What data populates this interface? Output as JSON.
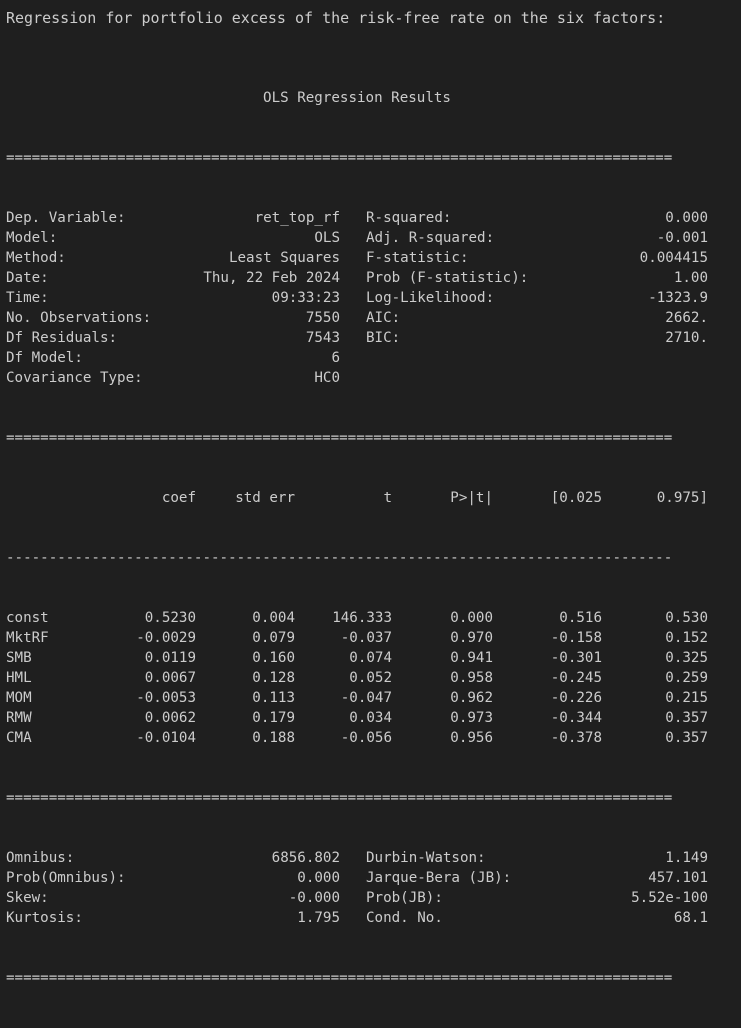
{
  "heading": "Regression for portfolio excess of the risk-free rate on the six factors:",
  "title": "OLS Regression Results",
  "separator_double": "==============================================================================",
  "separator_single": "------------------------------------------------------------------------------",
  "info_rows": [
    {
      "l_label": "Dep. Variable:",
      "l_value": "ret_top_rf",
      "r_label": "R-squared:",
      "r_value": "0.000"
    },
    {
      "l_label": "Model:",
      "l_value": "OLS",
      "r_label": "Adj. R-squared:",
      "r_value": "-0.001"
    },
    {
      "l_label": "Method:",
      "l_value": "Least Squares",
      "r_label": "F-statistic:",
      "r_value": "0.004415"
    },
    {
      "l_label": "Date:",
      "l_value": "Thu, 22 Feb 2024",
      "r_label": "Prob (F-statistic):",
      "r_value": "1.00"
    },
    {
      "l_label": "Time:",
      "l_value": "09:33:23",
      "r_label": "Log-Likelihood:",
      "r_value": "-1323.9"
    },
    {
      "l_label": "No. Observations:",
      "l_value": "7550",
      "r_label": "AIC:",
      "r_value": "2662."
    },
    {
      "l_label": "Df Residuals:",
      "l_value": "7543",
      "r_label": "BIC:",
      "r_value": "2710."
    },
    {
      "l_label": "Df Model:",
      "l_value": "6",
      "r_label": "",
      "r_value": ""
    },
    {
      "l_label": "Covariance Type:",
      "l_value": "HC0",
      "r_label": "",
      "r_value": ""
    }
  ],
  "coef_header": {
    "coef": "coef",
    "se": "std err",
    "t": "t",
    "p": "P>|t|",
    "lo": "[0.025",
    "hi": "0.975]"
  },
  "coef_rows": [
    {
      "name": "const",
      "coef": "0.5230",
      "se": "0.004",
      "t": "146.333",
      "p": "0.000",
      "lo": "0.516",
      "hi": "0.530"
    },
    {
      "name": "MktRF",
      "coef": "-0.0029",
      "se": "0.079",
      "t": "-0.037",
      "p": "0.970",
      "lo": "-0.158",
      "hi": "0.152"
    },
    {
      "name": "SMB",
      "coef": "0.0119",
      "se": "0.160",
      "t": "0.074",
      "p": "0.941",
      "lo": "-0.301",
      "hi": "0.325"
    },
    {
      "name": "HML",
      "coef": "0.0067",
      "se": "0.128",
      "t": "0.052",
      "p": "0.958",
      "lo": "-0.245",
      "hi": "0.259"
    },
    {
      "name": "MOM",
      "coef": "-0.0053",
      "se": "0.113",
      "t": "-0.047",
      "p": "0.962",
      "lo": "-0.226",
      "hi": "0.215"
    },
    {
      "name": "RMW",
      "coef": "0.0062",
      "se": "0.179",
      "t": "0.034",
      "p": "0.973",
      "lo": "-0.344",
      "hi": "0.357"
    },
    {
      "name": "CMA",
      "coef": "-0.0104",
      "se": "0.188",
      "t": "-0.056",
      "p": "0.956",
      "lo": "-0.378",
      "hi": "0.357"
    }
  ],
  "diag_rows": [
    {
      "l_label": "Omnibus:",
      "l_value": "6856.802",
      "r_label": "Durbin-Watson:",
      "r_value": "1.149"
    },
    {
      "l_label": "Prob(Omnibus):",
      "l_value": "0.000",
      "r_label": "Jarque-Bera (JB):",
      "r_value": "457.101"
    },
    {
      "l_label": "Skew:",
      "l_value": "-0.000",
      "r_label": "Prob(JB):",
      "r_value": "5.52e-100"
    },
    {
      "l_label": "Kurtosis:",
      "l_value": "1.795",
      "r_label": "Cond. No.",
      "r_value": "68.1"
    }
  ]
}
